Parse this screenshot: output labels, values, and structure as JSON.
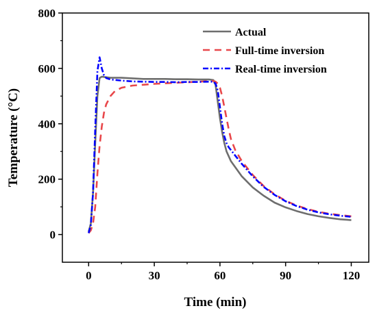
{
  "chart_data": {
    "type": "line",
    "xlabel": "Time (min)",
    "ylabel": "Temperature (°C)",
    "xlim": [
      -12,
      128
    ],
    "ylim": [
      -100,
      800
    ],
    "xticks": [
      0,
      30,
      60,
      90,
      120
    ],
    "yticks": [
      0,
      200,
      400,
      600,
      800
    ],
    "legend_position": "top-right",
    "grid": false,
    "series": [
      {
        "name": "Actual",
        "color": "#6e6e6e",
        "dash": "solid",
        "points": [
          [
            0,
            10
          ],
          [
            1,
            40
          ],
          [
            2,
            150
          ],
          [
            3,
            330
          ],
          [
            4,
            500
          ],
          [
            5,
            565
          ],
          [
            6,
            570
          ],
          [
            8,
            568
          ],
          [
            10,
            566
          ],
          [
            15,
            566
          ],
          [
            20,
            564
          ],
          [
            25,
            562
          ],
          [
            30,
            562
          ],
          [
            35,
            562
          ],
          [
            40,
            561
          ],
          [
            45,
            561
          ],
          [
            50,
            560
          ],
          [
            55,
            560
          ],
          [
            57,
            558
          ],
          [
            58,
            540
          ],
          [
            59,
            480
          ],
          [
            60,
            420
          ],
          [
            61,
            370
          ],
          [
            62,
            330
          ],
          [
            63,
            300
          ],
          [
            65,
            265
          ],
          [
            70,
            210
          ],
          [
            75,
            170
          ],
          [
            80,
            140
          ],
          [
            85,
            115
          ],
          [
            90,
            98
          ],
          [
            95,
            85
          ],
          [
            100,
            74
          ],
          [
            105,
            66
          ],
          [
            110,
            60
          ],
          [
            115,
            55
          ],
          [
            120,
            52
          ]
        ]
      },
      {
        "name": "Full-time inversion",
        "color": "#e8474a",
        "dash": "10,7",
        "points": [
          [
            0,
            5
          ],
          [
            1,
            15
          ],
          [
            2,
            40
          ],
          [
            3,
            100
          ],
          [
            4,
            220
          ],
          [
            5,
            320
          ],
          [
            6,
            390
          ],
          [
            7,
            440
          ],
          [
            8,
            470
          ],
          [
            10,
            500
          ],
          [
            12,
            518
          ],
          [
            15,
            530
          ],
          [
            20,
            538
          ],
          [
            25,
            541
          ],
          [
            30,
            544
          ],
          [
            35,
            546
          ],
          [
            40,
            548
          ],
          [
            45,
            550
          ],
          [
            50,
            552
          ],
          [
            55,
            554
          ],
          [
            57,
            555
          ],
          [
            58,
            552
          ],
          [
            59,
            545
          ],
          [
            60,
            530
          ],
          [
            61,
            500
          ],
          [
            62,
            460
          ],
          [
            63,
            420
          ],
          [
            64,
            380
          ],
          [
            65,
            345
          ],
          [
            67,
            305
          ],
          [
            70,
            265
          ],
          [
            75,
            215
          ],
          [
            80,
            175
          ],
          [
            85,
            145
          ],
          [
            90,
            122
          ],
          [
            95,
            105
          ],
          [
            100,
            92
          ],
          [
            105,
            82
          ],
          [
            110,
            75
          ],
          [
            115,
            70
          ],
          [
            120,
            66
          ]
        ]
      },
      {
        "name": "Real-time inversion",
        "color": "#0000ff",
        "dash": "8,3,2,3",
        "points": [
          [
            0,
            5
          ],
          [
            1,
            35
          ],
          [
            2,
            150
          ],
          [
            3,
            380
          ],
          [
            4,
            590
          ],
          [
            5,
            640
          ],
          [
            6,
            600
          ],
          [
            7,
            575
          ],
          [
            8,
            565
          ],
          [
            10,
            560
          ],
          [
            15,
            556
          ],
          [
            20,
            553
          ],
          [
            25,
            552
          ],
          [
            30,
            551
          ],
          [
            35,
            551
          ],
          [
            40,
            550
          ],
          [
            45,
            551
          ],
          [
            50,
            551
          ],
          [
            55,
            552
          ],
          [
            57,
            552
          ],
          [
            58,
            545
          ],
          [
            59,
            520
          ],
          [
            60,
            460
          ],
          [
            61,
            400
          ],
          [
            62,
            355
          ],
          [
            63,
            330
          ],
          [
            64,
            315
          ],
          [
            65,
            305
          ],
          [
            67,
            285
          ],
          [
            70,
            255
          ],
          [
            75,
            210
          ],
          [
            80,
            172
          ],
          [
            85,
            143
          ],
          [
            90,
            120
          ],
          [
            95,
            103
          ],
          [
            100,
            90
          ],
          [
            105,
            80
          ],
          [
            110,
            73
          ],
          [
            115,
            68
          ],
          [
            120,
            64
          ]
        ]
      }
    ]
  }
}
